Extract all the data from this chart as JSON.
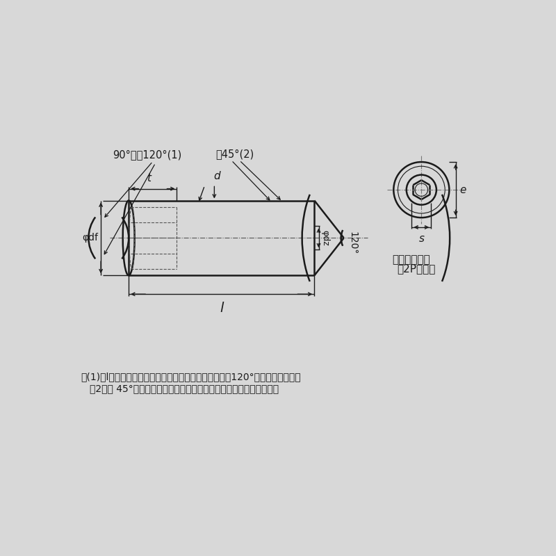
{
  "bg_color": "#d8d8d8",
  "line_color": "#1a1a1a",
  "note1": "注(1)　lが下の表に示す階段状の点線より短いものは、120°の面取りとする。",
  "note2": "（2）　 45°の角度は、おねじの谷の径より下の傾斜部に適用する。",
  "label_angle1": "90°又は120°(1)",
  "label_angle2": "絀45°(2)",
  "label_t": "t",
  "label_d": "d",
  "label_df": "φdf",
  "label_dz": "φdz",
  "label_l": "l",
  "label_120": "120°",
  "label_e": "e",
  "label_s": "s",
  "label_incomplete": "不完全ねじ部",
  "label_incomplete2": "（2P以下）"
}
